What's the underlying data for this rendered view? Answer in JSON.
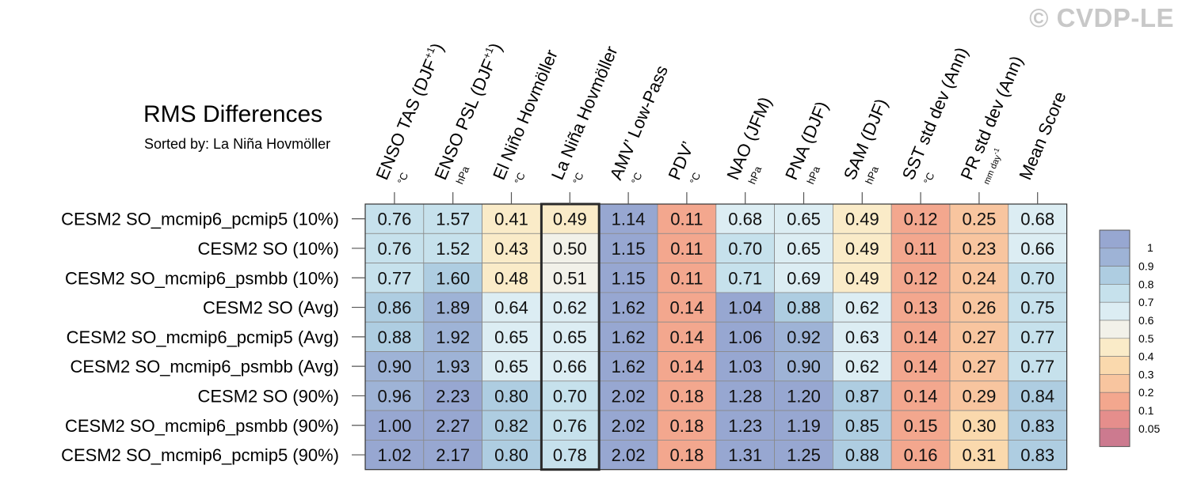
{
  "watermark": "© CVDP-LE",
  "title": "RMS Differences",
  "subtitle": "Sorted by: La Niña Hovmöller",
  "chart_data": {
    "type": "heatmap",
    "columns": [
      {
        "label": "ENSO TAS (DJF+1)",
        "main": "ENSO TAS (DJF",
        "sup": "+1",
        "tail": ")",
        "unit": "°C"
      },
      {
        "label": "ENSO PSL (DJF+1)",
        "main": "ENSO PSL (DJF",
        "sup": "+1",
        "tail": ")",
        "unit": "hPa"
      },
      {
        "label": "El Niño Hovmöller",
        "main": "El Niño Hovmöller",
        "unit": "°C"
      },
      {
        "label": "La Niña Hovmöller",
        "main": "La Niña Hovmöller",
        "unit": "°C"
      },
      {
        "label": "AMV' Low-Pass",
        "main": "AMV’ Low-Pass",
        "unit": "°C"
      },
      {
        "label": "PDV'",
        "main": "PDV’",
        "unit": "°C"
      },
      {
        "label": "NAO (JFM)",
        "main": "NAO (JFM)",
        "unit": "hPa"
      },
      {
        "label": "PNA (DJF)",
        "main": "PNA (DJF)",
        "unit": "hPa"
      },
      {
        "label": "SAM (DJF)",
        "main": "SAM (DJF)",
        "unit": "hPa"
      },
      {
        "label": "SST std dev (Ann)",
        "main": "SST std dev (Ann)",
        "unit": "°C"
      },
      {
        "label": "PR std dev (Ann)",
        "main": "PR std dev (Ann)",
        "unit": "mm day-1",
        "unit_main": "mm day",
        "unit_sup": "-1"
      },
      {
        "label": "Mean Score",
        "main": "Mean Score",
        "unit": ""
      }
    ],
    "rows": [
      "CESM2 SO_mcmip6_pcmip5 (10%)",
      "CESM2 SO (10%)",
      "CESM2 SO_mcmip6_psmbb (10%)",
      "CESM2 SO (Avg)",
      "CESM2 SO_mcmip6_pcmip5 (Avg)",
      "CESM2 SO_mcmip6_psmbb (Avg)",
      "CESM2 SO (90%)",
      "CESM2 SO_mcmip6_psmbb (90%)",
      "CESM2 SO_mcmip6_pcmip5 (90%)"
    ],
    "values": [
      [
        0.76,
        1.57,
        0.41,
        0.49,
        1.14,
        0.11,
        0.68,
        0.65,
        0.49,
        0.12,
        0.25,
        0.68
      ],
      [
        0.76,
        1.52,
        0.43,
        0.5,
        1.15,
        0.11,
        0.7,
        0.65,
        0.49,
        0.11,
        0.23,
        0.66
      ],
      [
        0.77,
        1.6,
        0.48,
        0.51,
        1.15,
        0.11,
        0.71,
        0.69,
        0.49,
        0.12,
        0.24,
        0.7
      ],
      [
        0.86,
        1.89,
        0.64,
        0.62,
        1.62,
        0.14,
        1.04,
        0.88,
        0.62,
        0.13,
        0.26,
        0.75
      ],
      [
        0.88,
        1.92,
        0.65,
        0.65,
        1.62,
        0.14,
        1.06,
        0.92,
        0.63,
        0.14,
        0.27,
        0.77
      ],
      [
        0.9,
        1.93,
        0.65,
        0.66,
        1.62,
        0.14,
        1.03,
        0.9,
        0.62,
        0.14,
        0.27,
        0.77
      ],
      [
        0.96,
        2.23,
        0.8,
        0.7,
        2.02,
        0.18,
        1.28,
        1.2,
        0.87,
        0.14,
        0.29,
        0.84
      ],
      [
        1.0,
        2.27,
        0.82,
        0.76,
        2.02,
        0.18,
        1.23,
        1.19,
        0.85,
        0.15,
        0.3,
        0.83
      ],
      [
        1.02,
        2.17,
        0.8,
        0.78,
        2.02,
        0.18,
        1.31,
        1.25,
        0.88,
        0.16,
        0.31,
        0.83
      ]
    ],
    "highlighted_column": "La Niña Hovmöller",
    "colorbar": {
      "ticks": [
        "1",
        "0.9",
        "0.8",
        "0.7",
        "0.6",
        "0.5",
        "0.4",
        "0.3",
        "0.2",
        "0.1",
        "0.05"
      ],
      "bounds": [
        0.05,
        0.1,
        0.2,
        0.3,
        0.4,
        0.5,
        0.6,
        0.7,
        0.8,
        0.9,
        1.0
      ],
      "colors": [
        "#cc7a8f",
        "#e58e8c",
        "#f3a78e",
        "#f8c59f",
        "#fad9ad",
        "#faebc8",
        "#f2f1e9",
        "#dcedf3",
        "#c6e1ec",
        "#aecde1",
        "#9eb3d6",
        "#97a7d1"
      ]
    }
  }
}
